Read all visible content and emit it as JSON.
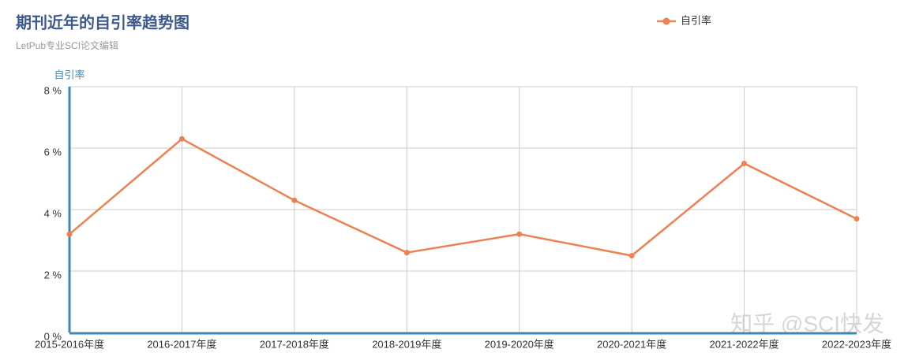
{
  "chart_data": {
    "type": "line",
    "title": "期刊近年的自引率趋势图",
    "subtitle": "LetPub专业SCI论文编辑",
    "y_label": "自引率",
    "watermark": "知乎 @SCI快发",
    "categories": [
      "2015-2016年度",
      "2016-2017年度",
      "2017-2018年度",
      "2018-2019年度",
      "2019-2020年度",
      "2020-2021年度",
      "2021-2022年度",
      "2022-2023年度"
    ],
    "series": [
      {
        "name": "自引率",
        "color": "#ec8152",
        "values": [
          3.2,
          6.3,
          4.3,
          2.6,
          3.2,
          2.5,
          5.5,
          3.7
        ]
      }
    ],
    "ylim": [
      0,
      8
    ],
    "yticks": [
      {
        "value": 0,
        "label": "0 %"
      },
      {
        "value": 2,
        "label": "2 %"
      },
      {
        "value": 4,
        "label": "4 %"
      },
      {
        "value": 6,
        "label": "6 %"
      },
      {
        "value": 8,
        "label": "8 %"
      }
    ],
    "grid": true,
    "legend": "top-right"
  }
}
